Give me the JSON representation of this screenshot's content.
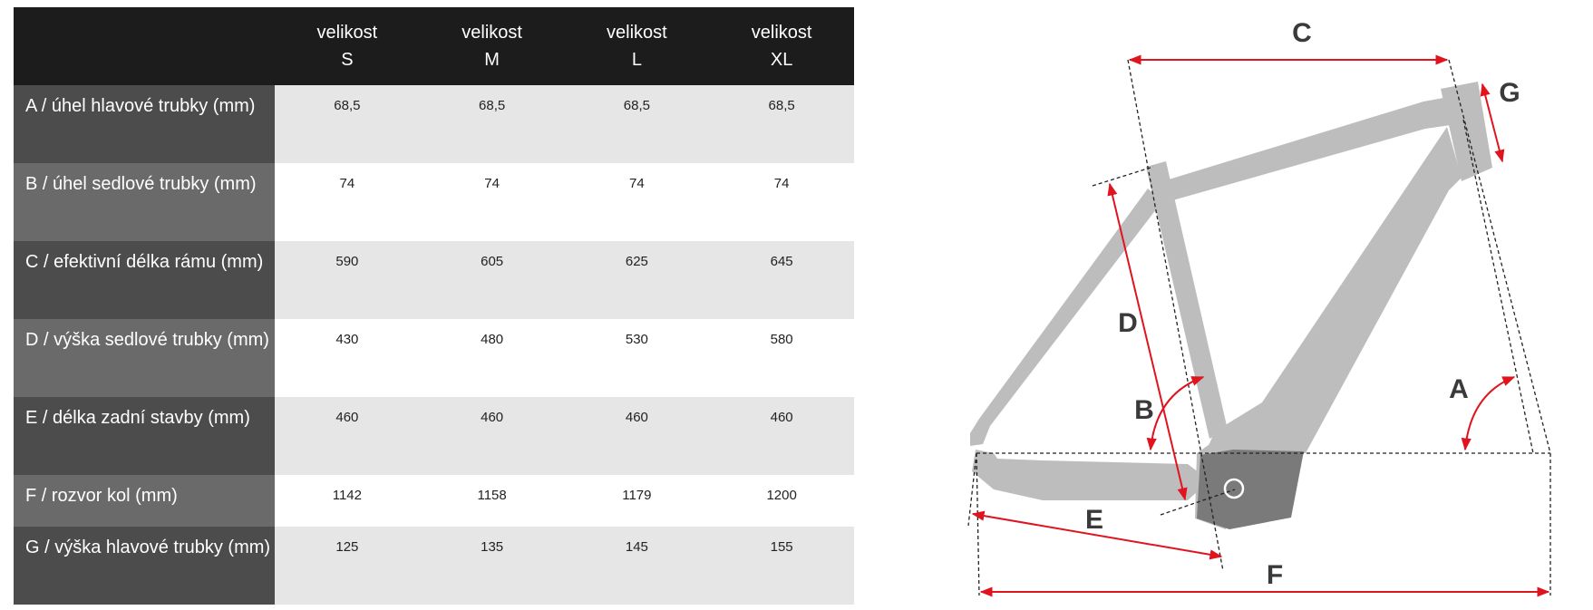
{
  "table": {
    "header": [
      {
        "line1": "velikost",
        "line2": "S"
      },
      {
        "line1": "velikost",
        "line2": "M"
      },
      {
        "line1": "velikost",
        "line2": "L"
      },
      {
        "line1": "velikost",
        "line2": "XL"
      }
    ],
    "rows": [
      {
        "label": "A / úhel hlavové trubky (mm)",
        "values": [
          "68,5",
          "68,5",
          "68,5",
          "68,5"
        ]
      },
      {
        "label": "B / úhel sedlové trubky (mm)",
        "values": [
          "74",
          "74",
          "74",
          "74"
        ]
      },
      {
        "label": "C / efektivní délka rámu (mm)",
        "values": [
          "590",
          "605",
          "625",
          "645"
        ]
      },
      {
        "label": "D / výška sedlové trubky (mm)",
        "values": [
          "430",
          "480",
          "530",
          "580"
        ]
      },
      {
        "label": "E / délka zadní stavby (mm)",
        "values": [
          "460",
          "460",
          "460",
          "460"
        ]
      },
      {
        "label": "F / rozvor kol (mm)",
        "values": [
          "1142",
          "1158",
          "1179",
          "1200"
        ]
      },
      {
        "label": "G / výška hlavové trubky (mm)",
        "values": [
          "125",
          "135",
          "145",
          "155"
        ]
      }
    ]
  },
  "diagram": {
    "labels": {
      "A": "A",
      "B": "B",
      "C": "C",
      "D": "D",
      "E": "E",
      "F": "F",
      "G": "G"
    },
    "colors": {
      "frame": "#bdbdbd",
      "motor": "#7a7a7a",
      "arrow": "#e0141e",
      "dash": "#222222",
      "label": "#3a3a3a"
    }
  }
}
